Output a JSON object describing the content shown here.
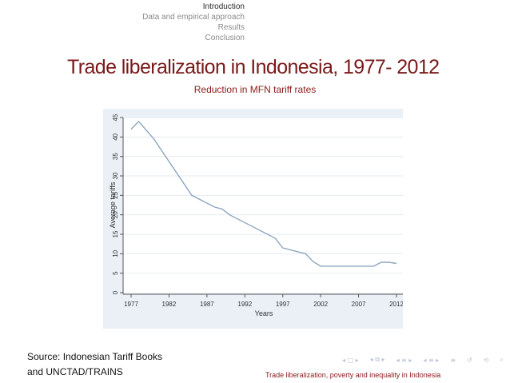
{
  "nav": {
    "sections": [
      "Introduction",
      "Data and empirical approach",
      "Results",
      "Conclusion"
    ],
    "active_index": 0
  },
  "slide": {
    "title": "Trade liberalization in Indonesia, 1977- 2012",
    "subtitle": "Reduction in MFN tariff rates"
  },
  "source": {
    "line1": "Source: Indonesian Tariff Books",
    "line2": "and UNCTAD/TRAINS"
  },
  "footer": {
    "text": "Trade liberalization, poverty and inequality in Indonesia"
  },
  "beamer_nav": {
    "icons": [
      "nav-left-icon",
      "nav-frame-icon",
      "nav-right-icon",
      "nav-subsection-icon",
      "nav-section-left-icon",
      "nav-section-right-icon",
      "nav-align-icon",
      "nav-search-icon"
    ],
    "glyphs": [
      "◂ □ ▸",
      "◂ ⧉ ▸",
      "◂ ≡ ▸",
      "◂ ≡ ▸",
      "≡",
      "↺",
      "⟲",
      "⌕"
    ]
  },
  "colors": {
    "title": "#7a1a1a",
    "accent": "#8b1a1a",
    "plot_bg": "#ffffff",
    "frame_bg": "#eaf0f6",
    "line": "#8ea7bf"
  },
  "chart_data": {
    "type": "line",
    "xlabel": "Years",
    "ylabel": "Average tariffs",
    "xlim": [
      1977,
      2012
    ],
    "ylim": [
      0,
      45
    ],
    "xticks": [
      1977,
      1982,
      1987,
      1992,
      1997,
      2002,
      2007,
      2012
    ],
    "yticks": [
      0,
      5,
      10,
      15,
      20,
      25,
      30,
      35,
      40,
      45
    ],
    "grid": true,
    "series": [
      {
        "x": [
          1977,
          1978,
          1980,
          1985,
          1988,
          1989,
          1990,
          1996,
          1997,
          1999,
          2000,
          2001,
          2002,
          2007,
          2009,
          2010,
          2011,
          2012
        ],
        "y": [
          42,
          44,
          39.5,
          25,
          22,
          21.5,
          20,
          14,
          11.5,
          10.5,
          10,
          8,
          6.8,
          6.8,
          6.8,
          7.8,
          7.8,
          7.5
        ]
      }
    ]
  }
}
